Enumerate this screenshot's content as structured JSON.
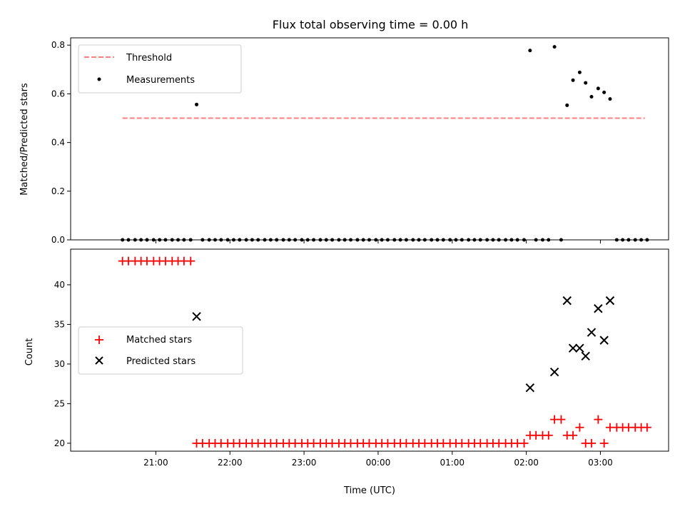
{
  "chart_data": {
    "type": "scatter",
    "title": "Flux total observing time = 0.00 h",
    "xlabel": "Time (UTC)",
    "x_ticks": [
      "21:00",
      "22:00",
      "23:00",
      "00:00",
      "01:00",
      "02:00",
      "03:00"
    ],
    "x_tick_hours": [
      21,
      22,
      23,
      24,
      25,
      26,
      27
    ],
    "xlim_hours": [
      19.85,
      27.92
    ],
    "colors": {
      "threshold": "#ff7f7f",
      "measurements": "#000000",
      "matched": "#ff0000",
      "predicted": "#000000"
    },
    "panels": [
      {
        "ylabel": "Matched/Predicted stars",
        "ylim": [
          0,
          0.83
        ],
        "y_ticks": [
          0.0,
          0.2,
          0.4,
          0.6,
          0.8
        ],
        "y_tick_labels": [
          "0.0",
          "0.2",
          "0.4",
          "0.6",
          "0.8"
        ],
        "legend": {
          "placement": "upper-left",
          "entries": [
            "Threshold",
            "Measurements"
          ]
        },
        "threshold": {
          "name": "Threshold",
          "y": 0.5,
          "x_start": 20.55,
          "x_end": 27.6
        },
        "measurements": {
          "name": "Measurements",
          "x": [
            20.55,
            20.63,
            20.72,
            20.8,
            20.88,
            20.97,
            21.05,
            21.13,
            21.22,
            21.3,
            21.38,
            21.47,
            21.55,
            21.63,
            21.72,
            21.8,
            21.88,
            21.97,
            22.05,
            22.13,
            22.22,
            22.3,
            22.38,
            22.47,
            22.55,
            22.63,
            22.72,
            22.8,
            22.88,
            22.97,
            23.05,
            23.13,
            23.22,
            23.3,
            23.38,
            23.47,
            23.55,
            23.63,
            23.72,
            23.8,
            23.88,
            23.97,
            24.05,
            24.13,
            24.22,
            24.3,
            24.38,
            24.47,
            24.55,
            24.63,
            24.72,
            24.8,
            24.88,
            24.97,
            25.05,
            25.13,
            25.22,
            25.3,
            25.38,
            25.47,
            25.55,
            25.63,
            25.72,
            25.8,
            25.88,
            25.97,
            26.05,
            26.13,
            26.22,
            26.3,
            26.38,
            26.47,
            26.55,
            26.63,
            26.72,
            26.8,
            26.88,
            26.97,
            27.05,
            27.13,
            27.22,
            27.3,
            27.38,
            27.47,
            27.55,
            27.63
          ],
          "y": [
            0,
            0,
            0,
            0,
            0,
            0,
            0,
            0,
            0,
            0,
            0,
            0,
            0.556,
            0,
            0,
            0,
            0,
            0,
            0,
            0,
            0,
            0,
            0,
            0,
            0,
            0,
            0,
            0,
            0,
            0,
            0,
            0,
            0,
            0,
            0,
            0,
            0,
            0,
            0,
            0,
            0,
            0,
            0,
            0,
            0,
            0,
            0,
            0,
            0,
            0,
            0,
            0,
            0,
            0,
            0,
            0,
            0,
            0,
            0,
            0,
            0,
            0,
            0,
            0,
            0,
            0,
            0.778,
            0,
            0,
            0,
            0.793,
            0,
            0.553,
            0.656,
            0.688,
            0.645,
            0.588,
            0.622,
            0.606,
            0.579,
            0,
            0,
            0,
            0,
            0,
            0
          ]
        }
      },
      {
        "ylabel": "Count",
        "ylim": [
          19,
          44.5
        ],
        "y_ticks": [
          20,
          25,
          30,
          35,
          40
        ],
        "y_tick_labels": [
          "20",
          "25",
          "30",
          "35",
          "40"
        ],
        "legend": {
          "placement": "center-left",
          "entries": [
            "Matched stars",
            "Predicted stars"
          ]
        },
        "matched": {
          "name": "Matched stars",
          "x": [
            20.55,
            20.63,
            20.72,
            20.8,
            20.88,
            20.97,
            21.05,
            21.13,
            21.22,
            21.3,
            21.38,
            21.47,
            21.55,
            21.63,
            21.72,
            21.8,
            21.88,
            21.97,
            22.05,
            22.13,
            22.22,
            22.3,
            22.38,
            22.47,
            22.55,
            22.63,
            22.72,
            22.8,
            22.88,
            22.97,
            23.05,
            23.13,
            23.22,
            23.3,
            23.38,
            23.47,
            23.55,
            23.63,
            23.72,
            23.8,
            23.88,
            23.97,
            24.05,
            24.13,
            24.22,
            24.3,
            24.38,
            24.47,
            24.55,
            24.63,
            24.72,
            24.8,
            24.88,
            24.97,
            25.05,
            25.13,
            25.22,
            25.3,
            25.38,
            25.47,
            25.55,
            25.63,
            25.72,
            25.8,
            25.88,
            25.97,
            26.05,
            26.13,
            26.22,
            26.3,
            26.38,
            26.47,
            26.55,
            26.63,
            26.72,
            26.8,
            26.88,
            26.97,
            27.05,
            27.13,
            27.22,
            27.3,
            27.38,
            27.47,
            27.55,
            27.63
          ],
          "y": [
            43,
            43,
            43,
            43,
            43,
            43,
            43,
            43,
            43,
            43,
            43,
            43,
            20,
            20,
            20,
            20,
            20,
            20,
            20,
            20,
            20,
            20,
            20,
            20,
            20,
            20,
            20,
            20,
            20,
            20,
            20,
            20,
            20,
            20,
            20,
            20,
            20,
            20,
            20,
            20,
            20,
            20,
            20,
            20,
            20,
            20,
            20,
            20,
            20,
            20,
            20,
            20,
            20,
            20,
            20,
            20,
            20,
            20,
            20,
            20,
            20,
            20,
            20,
            20,
            20,
            20,
            21,
            21,
            21,
            21,
            23,
            23,
            21,
            21,
            22,
            20,
            20,
            23,
            20,
            22,
            22,
            22,
            22,
            22,
            22,
            22
          ]
        },
        "predicted": {
          "name": "Predicted stars",
          "x": [
            21.55,
            26.05,
            26.38,
            26.55,
            26.63,
            26.72,
            26.8,
            26.88,
            26.97,
            27.05,
            27.13
          ],
          "y": [
            36,
            27,
            29,
            38,
            32,
            32,
            31,
            34,
            37,
            33,
            38
          ]
        }
      }
    ]
  }
}
